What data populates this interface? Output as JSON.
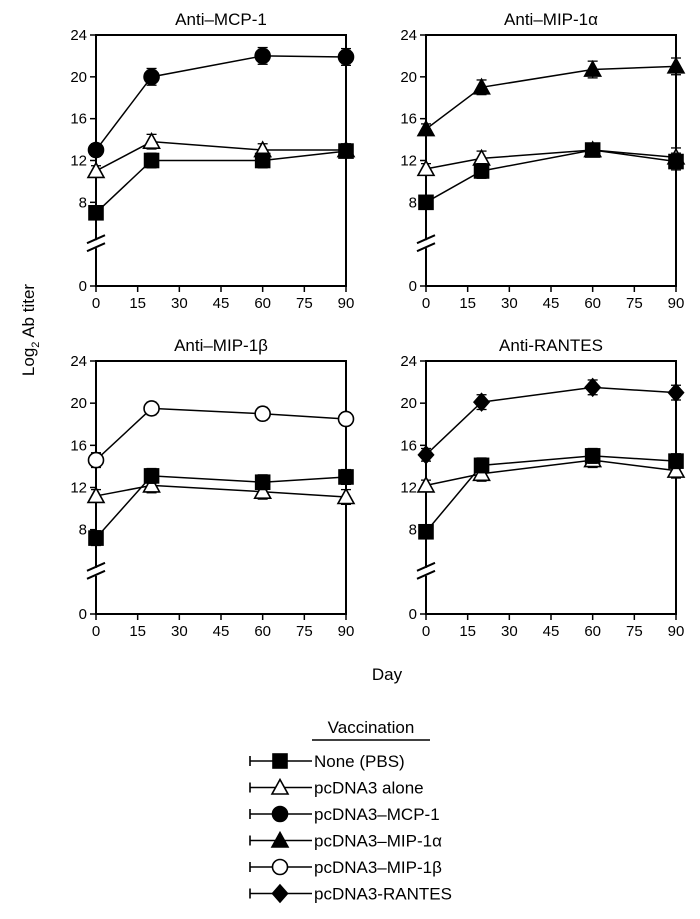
{
  "figure": {
    "ylabel": "Log",
    "ylabel_sub": "2",
    "ylabel_rest": " Ab titer",
    "xlabel": "Day"
  },
  "legend": {
    "title": "Vaccination",
    "entries": [
      {
        "label": "None (PBS)",
        "marker": "square",
        "fill": "#000000"
      },
      {
        "label": "pcDNA3 alone",
        "marker": "triangle",
        "fill": "#ffffff"
      },
      {
        "label": "pcDNA3–MCP-1",
        "marker": "circle",
        "fill": "#000000"
      },
      {
        "label": "pcDNA3–MIP-1α",
        "marker": "triangle",
        "fill": "#000000"
      },
      {
        "label": "pcDNA3–MIP-1β",
        "marker": "circle",
        "fill": "#ffffff"
      },
      {
        "label": "pcDNA3-RANTES",
        "marker": "diamond",
        "fill": "#000000"
      }
    ]
  },
  "chart_data": [
    {
      "type": "line",
      "title": "Anti–MCP-1",
      "x": [
        0,
        20,
        60,
        90
      ],
      "xlim": [
        0,
        90
      ],
      "xticks": [
        0,
        15,
        30,
        45,
        60,
        75,
        90
      ],
      "ylim": [
        0,
        24
      ],
      "yticks": [
        0,
        8,
        12,
        16,
        20,
        24
      ],
      "axis_break": true,
      "series": [
        {
          "name": "pcDNA3 alone",
          "values": [
            11,
            13.8,
            13,
            13
          ],
          "err": [
            0.5,
            0.7,
            0.6,
            0.6
          ]
        },
        {
          "name": "None (PBS)",
          "values": [
            7,
            12,
            12,
            12.9
          ],
          "err": [
            0.5,
            0.7,
            0.7,
            0.6
          ]
        },
        {
          "name": "pcDNA3–MCP-1",
          "values": [
            13,
            20,
            22,
            21.9
          ],
          "err": [
            0.6,
            0.8,
            0.8,
            0.8
          ]
        }
      ]
    },
    {
      "type": "line",
      "title": "Anti–MIP-1α",
      "x": [
        0,
        20,
        60,
        90
      ],
      "xlim": [
        0,
        90
      ],
      "xticks": [
        0,
        15,
        30,
        45,
        60,
        75,
        90
      ],
      "ylim": [
        0,
        24
      ],
      "yticks": [
        0,
        8,
        12,
        16,
        20,
        24
      ],
      "axis_break": true,
      "series": [
        {
          "name": "pcDNA3 alone",
          "values": [
            11.2,
            12.2,
            13,
            12.3
          ],
          "err": [
            0.5,
            0.7,
            0.6,
            0.9
          ]
        },
        {
          "name": "None (PBS)",
          "values": [
            8,
            11,
            13,
            11.9
          ],
          "err": [
            0.6,
            0.7,
            0.6,
            0.8
          ]
        },
        {
          "name": "pcDNA3–MIP-1α",
          "values": [
            15,
            19,
            20.7,
            21
          ],
          "err": [
            0.5,
            0.7,
            0.8,
            0.8
          ]
        }
      ]
    },
    {
      "type": "line",
      "title": "Anti–MIP-1β",
      "x": [
        0,
        20,
        60,
        90
      ],
      "xlim": [
        0,
        90
      ],
      "xticks": [
        0,
        15,
        30,
        45,
        60,
        75,
        90
      ],
      "ylim": [
        0,
        24
      ],
      "yticks": [
        0,
        8,
        12,
        16,
        20,
        24
      ],
      "axis_break": true,
      "series": [
        {
          "name": "pcDNA3 alone",
          "values": [
            11.2,
            12.2,
            11.6,
            11.1
          ],
          "err": [
            0.6,
            0.7,
            0.7,
            0.7
          ]
        },
        {
          "name": "None (PBS)",
          "values": [
            7.2,
            13.1,
            12.5,
            13
          ],
          "err": [
            0.7,
            0.7,
            0.7,
            0.7
          ]
        },
        {
          "name": "pcDNA3–MIP-1β",
          "values": [
            14.6,
            19.5,
            19,
            18.5
          ],
          "err": [
            0.7,
            0.6,
            0.6,
            0.6
          ]
        }
      ]
    },
    {
      "type": "line",
      "title": "Anti-RANTES",
      "x": [
        0,
        20,
        60,
        90
      ],
      "xlim": [
        0,
        90
      ],
      "xticks": [
        0,
        15,
        30,
        45,
        60,
        75,
        90
      ],
      "ylim": [
        0,
        24
      ],
      "yticks": [
        0,
        8,
        12,
        16,
        20,
        24
      ],
      "axis_break": true,
      "series": [
        {
          "name": "pcDNA3 alone",
          "values": [
            12.2,
            13.3,
            14.6,
            13.6
          ],
          "err": [
            0.5,
            0.7,
            0.7,
            0.7
          ]
        },
        {
          "name": "None (PBS)",
          "values": [
            7.8,
            14.1,
            15,
            14.5
          ],
          "err": [
            0.6,
            0.7,
            0.7,
            0.7
          ]
        },
        {
          "name": "pcDNA3-RANTES",
          "values": [
            15.1,
            20.1,
            21.5,
            21
          ],
          "err": [
            0.6,
            0.7,
            0.7,
            0.7
          ]
        }
      ]
    }
  ]
}
